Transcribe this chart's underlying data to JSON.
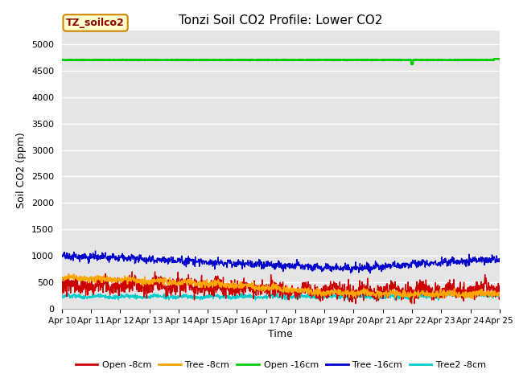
{
  "title": "Tonzi Soil CO2 Profile: Lower CO2",
  "xlabel": "Time",
  "ylabel": "Soil CO2 (ppm)",
  "ylim": [
    0,
    5250
  ],
  "yticks": [
    0,
    500,
    1000,
    1500,
    2000,
    2500,
    3000,
    3500,
    4000,
    4500,
    5000
  ],
  "bg_color": "#e5e5e5",
  "legend_label": "TZ_soilco2",
  "series": {
    "open_8cm": {
      "color": "#cc0000",
      "label": "Open -8cm"
    },
    "tree_8cm": {
      "color": "#ffa500",
      "label": "Tree -8cm"
    },
    "open_16cm": {
      "color": "#00cc00",
      "label": "Open -16cm"
    },
    "tree_16cm": {
      "color": "#0000cc",
      "label": "Tree -16cm"
    },
    "tree2_8cm": {
      "color": "#00cccc",
      "label": "Tree2 -8cm"
    }
  },
  "x_tick_labels": [
    "Apr 10",
    "Apr 11",
    "Apr 12",
    "Apr 13",
    "Apr 14",
    "Apr 15",
    "Apr 16",
    "Apr 17",
    "Apr 18",
    "Apr 19",
    "Apr 20",
    "Apr 21",
    "Apr 22",
    "Apr 23",
    "Apr 24",
    "Apr 25"
  ],
  "n_points": 1500,
  "seed": 42
}
